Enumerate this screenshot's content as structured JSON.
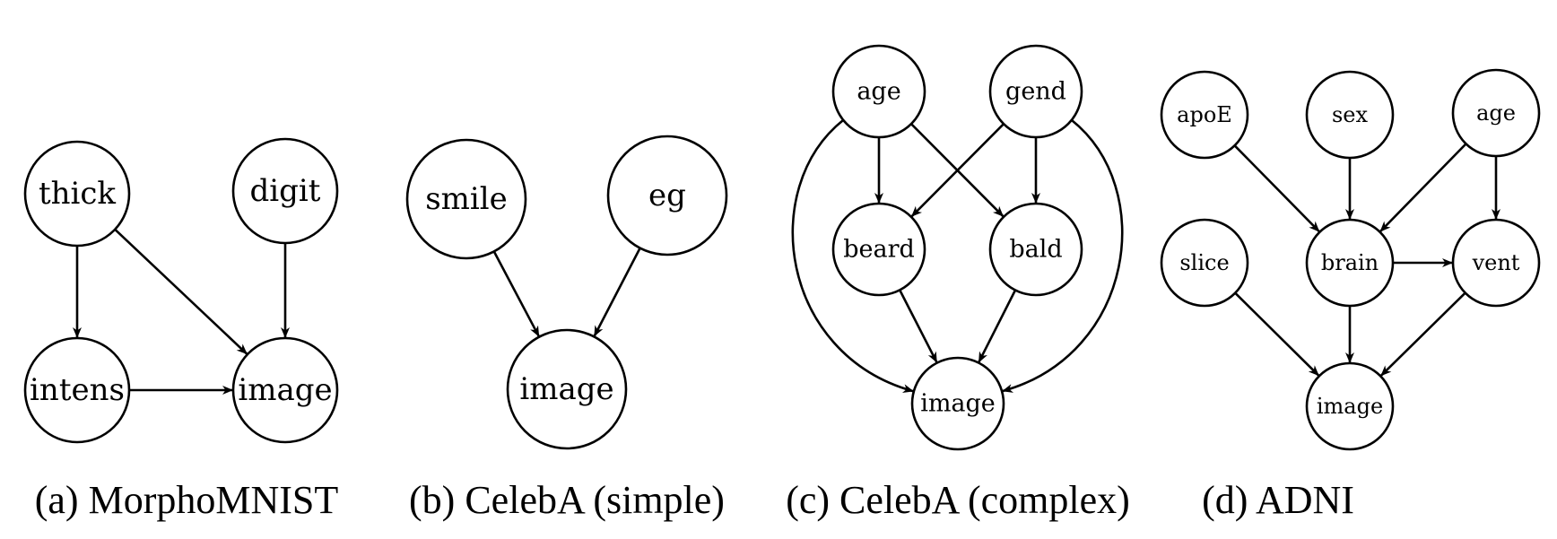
{
  "panels": [
    {
      "caption": "(a) MorphoMNIST",
      "nodes": [
        {
          "id": "thick",
          "label": "thick"
        },
        {
          "id": "digit",
          "label": "digit"
        },
        {
          "id": "intens",
          "label": "intens"
        },
        {
          "id": "image",
          "label": "image"
        }
      ],
      "edges": [
        {
          "from": "thick",
          "to": "intens"
        },
        {
          "from": "thick",
          "to": "image"
        },
        {
          "from": "digit",
          "to": "image"
        },
        {
          "from": "intens",
          "to": "image"
        }
      ]
    },
    {
      "caption": "(b) CelebA (simple)",
      "nodes": [
        {
          "id": "smile",
          "label": "smile"
        },
        {
          "id": "eg",
          "label": "eg"
        },
        {
          "id": "image",
          "label": "image"
        }
      ],
      "edges": [
        {
          "from": "smile",
          "to": "image"
        },
        {
          "from": "eg",
          "to": "image"
        }
      ]
    },
    {
      "caption": "(c) CelebA (complex)",
      "nodes": [
        {
          "id": "age",
          "label": "age"
        },
        {
          "id": "gend",
          "label": "gend"
        },
        {
          "id": "beard",
          "label": "beard"
        },
        {
          "id": "bald",
          "label": "bald"
        },
        {
          "id": "image",
          "label": "image"
        }
      ],
      "edges": [
        {
          "from": "age",
          "to": "beard"
        },
        {
          "from": "age",
          "to": "bald"
        },
        {
          "from": "gend",
          "to": "beard"
        },
        {
          "from": "gend",
          "to": "bald"
        },
        {
          "from": "beard",
          "to": "image"
        },
        {
          "from": "bald",
          "to": "image"
        },
        {
          "from": "age",
          "to": "image"
        },
        {
          "from": "gend",
          "to": "image"
        }
      ]
    },
    {
      "caption": "(d) ADNI",
      "nodes": [
        {
          "id": "apoE",
          "label": "apoE"
        },
        {
          "id": "sex",
          "label": "sex"
        },
        {
          "id": "age",
          "label": "age"
        },
        {
          "id": "slice",
          "label": "slice"
        },
        {
          "id": "brain",
          "label": "brain"
        },
        {
          "id": "vent",
          "label": "vent"
        },
        {
          "id": "image",
          "label": "image"
        }
      ],
      "edges": [
        {
          "from": "apoE",
          "to": "brain"
        },
        {
          "from": "sex",
          "to": "brain"
        },
        {
          "from": "age",
          "to": "brain"
        },
        {
          "from": "age",
          "to": "vent"
        },
        {
          "from": "brain",
          "to": "vent"
        },
        {
          "from": "slice",
          "to": "image"
        },
        {
          "from": "brain",
          "to": "image"
        },
        {
          "from": "vent",
          "to": "image"
        }
      ]
    }
  ]
}
